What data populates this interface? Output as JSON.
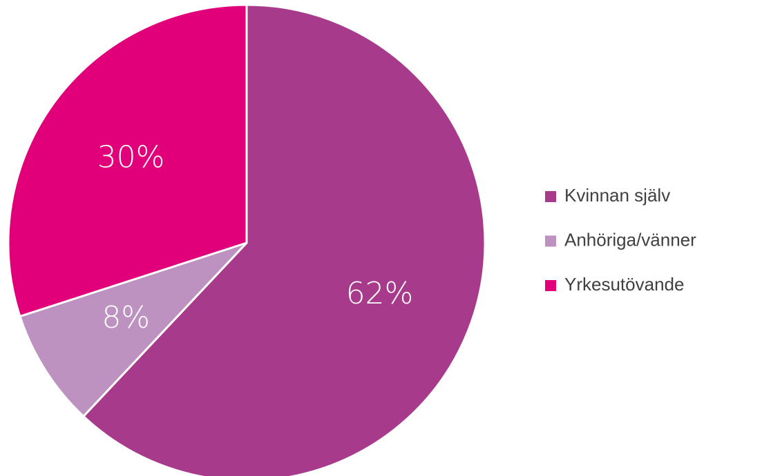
{
  "chart_data": {
    "type": "pie",
    "categories": [
      "Kvinnan själv",
      "Anhöriga/vänner",
      "Yrkesutövande"
    ],
    "values": [
      62,
      8,
      30
    ],
    "value_labels": [
      "62%",
      "8%",
      "30%"
    ],
    "colors": [
      "#a83a8c",
      "#bd92c0",
      "#e2007a"
    ],
    "legend": "right"
  }
}
